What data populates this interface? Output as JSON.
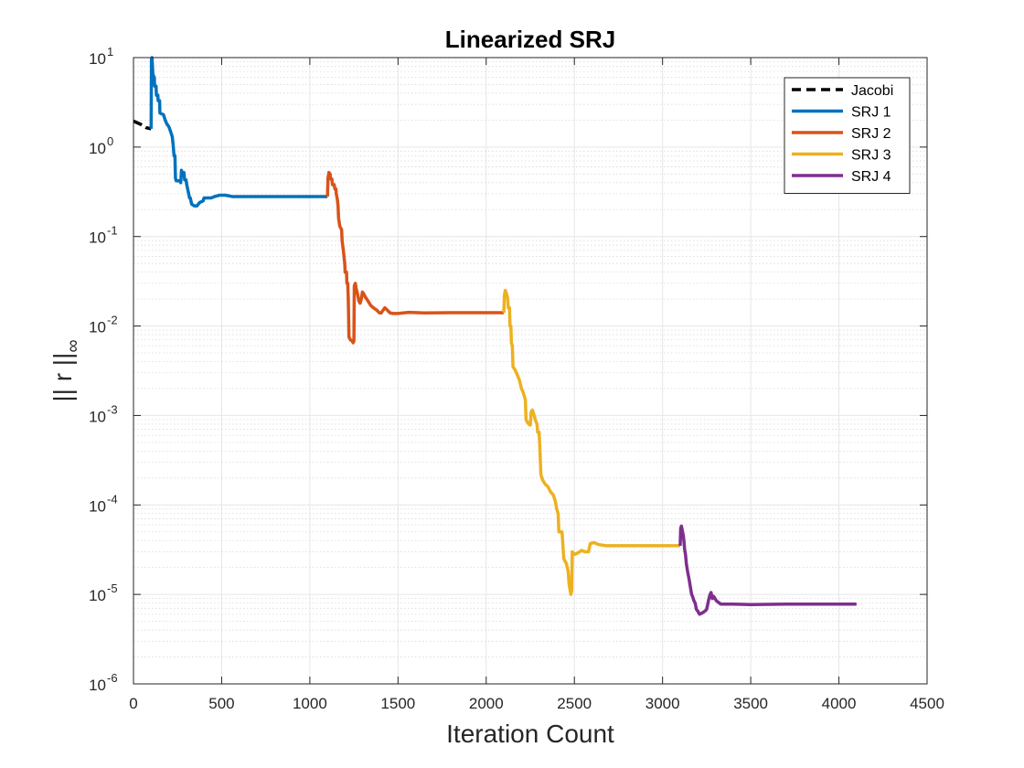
{
  "chart_data": {
    "type": "line",
    "title": "Linearized SRJ",
    "xlabel": "Iteration Count",
    "ylabel": "|| r ||",
    "ylabel_subscript": "∞",
    "xlim": [
      0,
      4500
    ],
    "ylim": [
      1e-06,
      10
    ],
    "yscale": "log",
    "grid": true,
    "minor_grid": true,
    "legend_position": "top-right",
    "x_ticks": [
      0,
      500,
      1000,
      1500,
      2000,
      2500,
      3000,
      3500,
      4000,
      4500
    ],
    "x_tick_labels": [
      "0",
      "500",
      "1000",
      "1500",
      "2000",
      "2500",
      "3000",
      "3500",
      "4000",
      "4500"
    ],
    "y_ticks": [
      1e-06,
      1e-05,
      0.0001,
      0.001,
      0.01,
      0.1,
      1,
      10
    ],
    "y_tick_labels": [
      {
        "base": "10",
        "exp": "-6"
      },
      {
        "base": "10",
        "exp": "-5"
      },
      {
        "base": "10",
        "exp": "-4"
      },
      {
        "base": "10",
        "exp": "-3"
      },
      {
        "base": "10",
        "exp": "-2"
      },
      {
        "base": "10",
        "exp": "-1"
      },
      {
        "base": "10",
        "exp": "0"
      },
      {
        "base": "10",
        "exp": "1"
      }
    ],
    "series": [
      {
        "name": "Jacobi",
        "color": "#000000",
        "dashed": true,
        "points": [
          [
            0,
            1.95
          ],
          [
            40,
            1.8
          ],
          [
            70,
            1.65
          ],
          [
            100,
            1.6
          ]
        ]
      },
      {
        "name": "SRJ 1",
        "color": "#0072BD",
        "dashed": false,
        "points": [
          [
            100,
            1.6
          ],
          [
            102,
            9.5
          ],
          [
            105,
            10
          ],
          [
            110,
            6.5
          ],
          [
            118,
            6
          ],
          [
            120,
            4.8
          ],
          [
            128,
            4.8
          ],
          [
            130,
            3.8
          ],
          [
            138,
            3.8
          ],
          [
            140,
            3.3
          ],
          [
            148,
            3.3
          ],
          [
            150,
            2.4
          ],
          [
            170,
            2.3
          ],
          [
            180,
            2.0
          ],
          [
            190,
            1.8
          ],
          [
            200,
            1.7
          ],
          [
            210,
            1.5
          ],
          [
            220,
            1.3
          ],
          [
            225,
            1.05
          ],
          [
            230,
            0.8
          ],
          [
            235,
            0.8
          ],
          [
            238,
            0.45
          ],
          [
            242,
            0.42
          ],
          [
            265,
            0.42
          ],
          [
            268,
            0.4
          ],
          [
            272,
            0.55
          ],
          [
            278,
            0.5
          ],
          [
            282,
            0.48
          ],
          [
            286,
            0.52
          ],
          [
            290,
            0.43
          ],
          [
            298,
            0.43
          ],
          [
            302,
            0.38
          ],
          [
            310,
            0.32
          ],
          [
            318,
            0.27
          ],
          [
            322,
            0.27
          ],
          [
            330,
            0.23
          ],
          [
            345,
            0.22
          ],
          [
            360,
            0.22
          ],
          [
            375,
            0.24
          ],
          [
            395,
            0.25
          ],
          [
            400,
            0.27
          ],
          [
            440,
            0.27
          ],
          [
            460,
            0.28
          ],
          [
            490,
            0.29
          ],
          [
            520,
            0.29
          ],
          [
            560,
            0.28
          ],
          [
            700,
            0.28
          ],
          [
            900,
            0.28
          ],
          [
            1100,
            0.28
          ]
        ]
      },
      {
        "name": "SRJ 2",
        "color": "#D95319",
        "dashed": false,
        "points": [
          [
            1100,
            0.28
          ],
          [
            1103,
            0.45
          ],
          [
            1108,
            0.52
          ],
          [
            1115,
            0.5
          ],
          [
            1118,
            0.44
          ],
          [
            1125,
            0.44
          ],
          [
            1128,
            0.38
          ],
          [
            1138,
            0.38
          ],
          [
            1142,
            0.34
          ],
          [
            1148,
            0.34
          ],
          [
            1150,
            0.3
          ],
          [
            1156,
            0.26
          ],
          [
            1160,
            0.22
          ],
          [
            1163,
            0.16
          ],
          [
            1170,
            0.13
          ],
          [
            1180,
            0.12
          ],
          [
            1183,
            0.09
          ],
          [
            1190,
            0.07
          ],
          [
            1198,
            0.05
          ],
          [
            1200,
            0.04
          ],
          [
            1208,
            0.04
          ],
          [
            1210,
            0.03
          ],
          [
            1215,
            0.03
          ],
          [
            1218,
            0.02
          ],
          [
            1222,
            0.0075
          ],
          [
            1230,
            0.007
          ],
          [
            1240,
            0.0068
          ],
          [
            1245,
            0.0065
          ],
          [
            1250,
            0.0068
          ],
          [
            1252,
            0.028
          ],
          [
            1258,
            0.03
          ],
          [
            1263,
            0.026
          ],
          [
            1268,
            0.024
          ],
          [
            1272,
            0.022
          ],
          [
            1278,
            0.019
          ],
          [
            1285,
            0.018
          ],
          [
            1292,
            0.02
          ],
          [
            1298,
            0.024
          ],
          [
            1305,
            0.023
          ],
          [
            1315,
            0.021
          ],
          [
            1330,
            0.019
          ],
          [
            1345,
            0.017
          ],
          [
            1360,
            0.016
          ],
          [
            1380,
            0.015
          ],
          [
            1395,
            0.014
          ],
          [
            1405,
            0.014
          ],
          [
            1415,
            0.015
          ],
          [
            1425,
            0.016
          ],
          [
            1440,
            0.015
          ],
          [
            1455,
            0.014
          ],
          [
            1470,
            0.0138
          ],
          [
            1500,
            0.0138
          ],
          [
            1560,
            0.0142
          ],
          [
            1650,
            0.014
          ],
          [
            1800,
            0.0141
          ],
          [
            2000,
            0.0141
          ],
          [
            2100,
            0.0141
          ]
        ]
      },
      {
        "name": "SRJ 3",
        "color": "#EDB120",
        "dashed": false,
        "points": [
          [
            2100,
            0.0141
          ],
          [
            2103,
            0.022
          ],
          [
            2108,
            0.025
          ],
          [
            2112,
            0.024
          ],
          [
            2118,
            0.022
          ],
          [
            2122,
            0.02
          ],
          [
            2125,
            0.016
          ],
          [
            2132,
            0.016
          ],
          [
            2135,
            0.01
          ],
          [
            2140,
            0.01
          ],
          [
            2143,
            0.0065
          ],
          [
            2148,
            0.006
          ],
          [
            2152,
            0.0035
          ],
          [
            2165,
            0.0032
          ],
          [
            2178,
            0.0028
          ],
          [
            2188,
            0.0025
          ],
          [
            2195,
            0.0022
          ],
          [
            2200,
            0.002
          ],
          [
            2210,
            0.0018
          ],
          [
            2222,
            0.0015
          ],
          [
            2226,
            0.0009
          ],
          [
            2232,
            0.00085
          ],
          [
            2242,
            0.0008
          ],
          [
            2250,
            0.00078
          ],
          [
            2255,
            0.0011
          ],
          [
            2262,
            0.00115
          ],
          [
            2272,
            0.001
          ],
          [
            2278,
            0.0009
          ],
          [
            2288,
            0.0008
          ],
          [
            2292,
            0.00065
          ],
          [
            2300,
            0.00065
          ],
          [
            2304,
            0.00045
          ],
          [
            2310,
            0.00022
          ],
          [
            2320,
            0.00019
          ],
          [
            2335,
            0.00017
          ],
          [
            2350,
            0.00016
          ],
          [
            2365,
            0.00014
          ],
          [
            2380,
            0.00013
          ],
          [
            2392,
            0.00011
          ],
          [
            2400,
            9e-05
          ],
          [
            2408,
            8e-05
          ],
          [
            2412,
            5e-05
          ],
          [
            2420,
            5e-05
          ],
          [
            2430,
            5e-05
          ],
          [
            2440,
            2.5e-05
          ],
          [
            2455,
            2.2e-05
          ],
          [
            2465,
            1.8e-05
          ],
          [
            2470,
            1.3e-05
          ],
          [
            2480,
            1e-05
          ],
          [
            2485,
            1.1e-05
          ],
          [
            2488,
            3e-05
          ],
          [
            2500,
            2.8e-05
          ],
          [
            2520,
            2.9e-05
          ],
          [
            2540,
            3.1e-05
          ],
          [
            2560,
            3e-05
          ],
          [
            2580,
            3e-05
          ],
          [
            2590,
            3.7e-05
          ],
          [
            2610,
            3.8e-05
          ],
          [
            2640,
            3.6e-05
          ],
          [
            2680,
            3.5e-05
          ],
          [
            2800,
            3.5e-05
          ],
          [
            3000,
            3.5e-05
          ],
          [
            3100,
            3.5e-05
          ]
        ]
      },
      {
        "name": "SRJ 4",
        "color": "#7E2F8E",
        "dashed": false,
        "points": [
          [
            3100,
            3.5e-05
          ],
          [
            3103,
            5.5e-05
          ],
          [
            3107,
            5.8e-05
          ],
          [
            3112,
            5.2e-05
          ],
          [
            3118,
            4.5e-05
          ],
          [
            3122,
            3.8e-05
          ],
          [
            3125,
            3.2e-05
          ],
          [
            3130,
            2.8e-05
          ],
          [
            3135,
            2.2e-05
          ],
          [
            3142,
            1.8e-05
          ],
          [
            3150,
            1.5e-05
          ],
          [
            3158,
            1.2e-05
          ],
          [
            3165,
            1e-05
          ],
          [
            3170,
            9.5e-06
          ],
          [
            3178,
            8.5e-06
          ],
          [
            3185,
            8e-06
          ],
          [
            3192,
            6.8e-06
          ],
          [
            3200,
            6.5e-06
          ],
          [
            3210,
            6e-06
          ],
          [
            3225,
            6.2e-06
          ],
          [
            3240,
            6.5e-06
          ],
          [
            3250,
            6.8e-06
          ],
          [
            3262,
            8.8e-06
          ],
          [
            3268,
            9.8e-06
          ],
          [
            3275,
            1.05e-05
          ],
          [
            3282,
            9e-06
          ],
          [
            3290,
            9.5e-06
          ],
          [
            3305,
            8.5e-06
          ],
          [
            3315,
            8.2e-06
          ],
          [
            3330,
            7.8e-06
          ],
          [
            3400,
            7.8e-06
          ],
          [
            3500,
            7.7e-06
          ],
          [
            3700,
            7.8e-06
          ],
          [
            4100,
            7.8e-06
          ]
        ]
      }
    ]
  }
}
